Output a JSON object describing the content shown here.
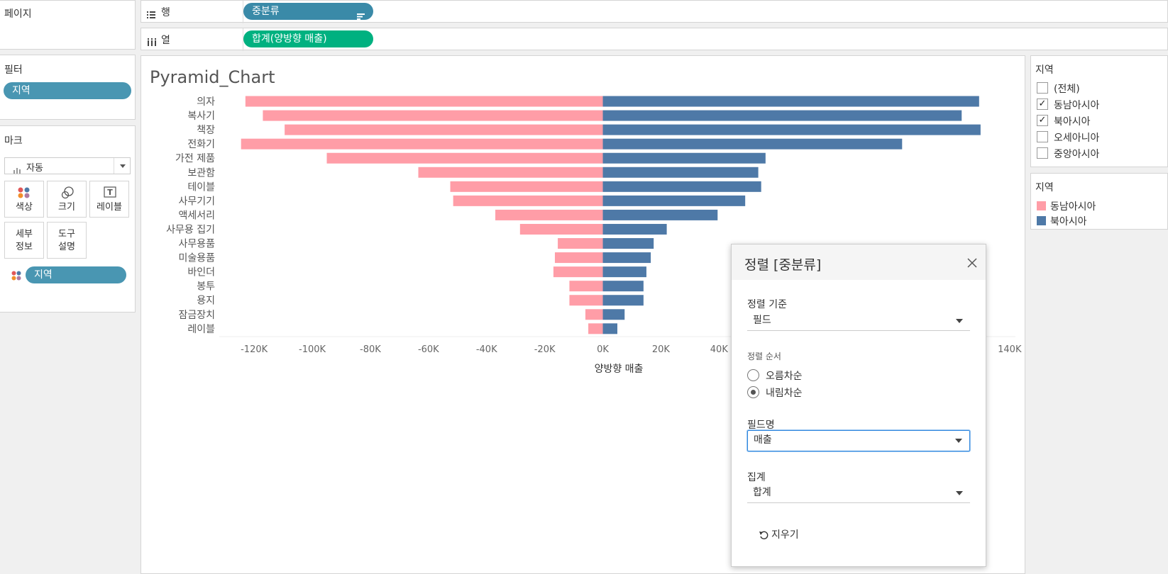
{
  "left": {
    "pages_title": "페이지",
    "filters_title": "필터",
    "filter_pill": "지역",
    "marks_title": "마크",
    "mark_type": "자동",
    "buttons": {
      "color": "색상",
      "size": "크기",
      "label": "레이블",
      "detail": "세부\n정보",
      "tooltip": "도구\n설명"
    },
    "color_pill": "지역"
  },
  "shelves": {
    "rows_label": "행",
    "rows_pill": "중분류",
    "cols_label": "열",
    "cols_pill": "합계(양방향 매출)"
  },
  "filter_card": {
    "title": "지역",
    "items": [
      {
        "label": "(전체)",
        "checked": false
      },
      {
        "label": "동남아시아",
        "checked": true
      },
      {
        "label": "북아시아",
        "checked": true
      },
      {
        "label": "오세아니아",
        "checked": false
      },
      {
        "label": "중앙아시아",
        "checked": false
      }
    ]
  },
  "legend": {
    "title": "지역",
    "items": [
      {
        "label": "동남아시아",
        "color": "#ff9da7"
      },
      {
        "label": "북아시아",
        "color": "#4e79a7"
      }
    ]
  },
  "chart_data": {
    "type": "bar",
    "title": "Pyramid_Chart",
    "xlabel": "양방향 매출",
    "xlim": [
      -132000,
      142000
    ],
    "xticks": [
      -120000,
      -100000,
      -80000,
      -60000,
      -40000,
      -20000,
      0,
      20000,
      40000,
      140000
    ],
    "xtick_labels": [
      "-120K",
      "-100K",
      "-80K",
      "-60K",
      "-40K",
      "-20K",
      "0K",
      "20K",
      "40K",
      "140K"
    ],
    "categories": [
      "의자",
      "복사기",
      "책장",
      "전화기",
      "가전 제품",
      "보관함",
      "테이블",
      "사무기기",
      "액세서리",
      "사무용 집기",
      "사무용품",
      "미술용품",
      "바인더",
      "봉투",
      "용지",
      "잠금장치",
      "레이블"
    ],
    "series": [
      {
        "name": "동남아시아",
        "color": "#ff9da7",
        "values": [
          -123000,
          -117000,
          -109500,
          -124500,
          -95000,
          -63500,
          -52500,
          -51500,
          -37000,
          -28500,
          -15500,
          -16500,
          -17000,
          -11500,
          -11500,
          -6000,
          -5000
        ]
      },
      {
        "name": "북아시아",
        "color": "#4e79a7",
        "values": [
          129500,
          123500,
          130000,
          103000,
          56000,
          53500,
          54500,
          49000,
          39500,
          22000,
          17500,
          16500,
          15000,
          14000,
          14000,
          7500,
          5000
        ]
      }
    ]
  },
  "dialog": {
    "title": "정렬 [중분류]",
    "sort_by_label": "정렬 기준",
    "sort_by_value": "필드",
    "order_label": "정렬 순서",
    "asc_label": "오름차순",
    "desc_label": "내림차순",
    "selected_order": "desc",
    "field_label": "필드명",
    "field_value": "매출",
    "agg_label": "집계",
    "agg_value": "합계",
    "clear_label": "지우기"
  }
}
